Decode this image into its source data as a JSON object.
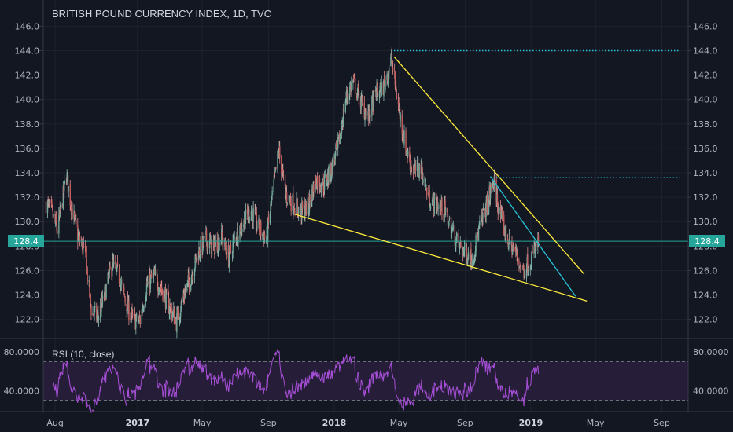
{
  "chart_data": [
    {
      "type": "candlestick",
      "title": "BRITISH POUND CURRENCY INDEX, 1D, TVC",
      "ylim": [
        120.5,
        147.5
      ],
      "yticks": [
        "146.0",
        "144.0",
        "142.0",
        "140.0",
        "138.0",
        "136.0",
        "134.0",
        "132.0",
        "130.0",
        "128.0",
        "126.0",
        "124.0",
        "122.0"
      ],
      "xticks": [
        {
          "label": "Aug",
          "bold": false
        },
        {
          "label": "2017",
          "bold": true
        },
        {
          "label": "May",
          "bold": false
        },
        {
          "label": "Sep",
          "bold": false
        },
        {
          "label": "2018",
          "bold": true
        },
        {
          "label": "May",
          "bold": false
        },
        {
          "label": "Sep",
          "bold": false
        },
        {
          "label": "2019",
          "bold": true
        },
        {
          "label": "May",
          "bold": false
        },
        {
          "label": "Sep",
          "bold": false
        }
      ],
      "current_price": "128.4",
      "grid": true,
      "series_path": [
        [
          "2016-07-15",
          131.5
        ],
        [
          "2016-07-25",
          130.8
        ],
        [
          "2016-08-05",
          129.3
        ],
        [
          "2016-08-12",
          131.0
        ],
        [
          "2016-08-22",
          133.8
        ],
        [
          "2016-09-01",
          131.0
        ],
        [
          "2016-09-12",
          128.8
        ],
        [
          "2016-09-25",
          127.5
        ],
        [
          "2016-10-08",
          122.5
        ],
        [
          "2016-10-20",
          122.2
        ],
        [
          "2016-11-01",
          124.0
        ],
        [
          "2016-11-15",
          126.5
        ],
        [
          "2016-11-28",
          125.5
        ],
        [
          "2016-12-12",
          123.2
        ],
        [
          "2016-12-22",
          122.0
        ],
        [
          "2017-01-05",
          121.8
        ],
        [
          "2017-01-18",
          124.8
        ],
        [
          "2017-02-01",
          125.5
        ],
        [
          "2017-02-15",
          124.5
        ],
        [
          "2017-03-01",
          123.0
        ],
        [
          "2017-03-14",
          121.8
        ],
        [
          "2017-03-28",
          124.0
        ],
        [
          "2017-04-10",
          125.5
        ],
        [
          "2017-04-24",
          127.5
        ],
        [
          "2017-05-08",
          128.5
        ],
        [
          "2017-05-22",
          127.8
        ],
        [
          "2017-06-05",
          128.8
        ],
        [
          "2017-06-19",
          127.0
        ],
        [
          "2017-07-03",
          129.0
        ],
        [
          "2017-07-17",
          130.0
        ],
        [
          "2017-07-31",
          131.0
        ],
        [
          "2017-08-14",
          129.5
        ],
        [
          "2017-08-28",
          128.5
        ],
        [
          "2017-09-11",
          133.0
        ],
        [
          "2017-09-20",
          135.8
        ],
        [
          "2017-10-03",
          132.2
        ],
        [
          "2017-10-17",
          131.5
        ],
        [
          "2017-10-31",
          130.8
        ],
        [
          "2017-11-14",
          131.2
        ],
        [
          "2017-11-28",
          133.5
        ],
        [
          "2017-12-12",
          133.0
        ],
        [
          "2017-12-26",
          134.2
        ],
        [
          "2018-01-10",
          136.5
        ],
        [
          "2018-01-22",
          140.0
        ],
        [
          "2018-02-05",
          141.5
        ],
        [
          "2018-02-19",
          139.8
        ],
        [
          "2018-03-05",
          138.5
        ],
        [
          "2018-03-19",
          140.5
        ],
        [
          "2018-04-02",
          141.0
        ],
        [
          "2018-04-17",
          143.3
        ],
        [
          "2018-04-30",
          139.5
        ],
        [
          "2018-05-14",
          136.0
        ],
        [
          "2018-05-28",
          134.0
        ],
        [
          "2018-06-11",
          134.5
        ],
        [
          "2018-06-25",
          132.0
        ],
        [
          "2018-07-09",
          131.5
        ],
        [
          "2018-07-23",
          131.0
        ],
        [
          "2018-08-06",
          129.5
        ],
        [
          "2018-08-20",
          128.0
        ],
        [
          "2018-09-03",
          127.5
        ],
        [
          "2018-09-14",
          127.0
        ],
        [
          "2018-09-28",
          129.5
        ],
        [
          "2018-10-12",
          131.5
        ],
        [
          "2018-10-24",
          133.3
        ],
        [
          "2018-11-05",
          130.5
        ],
        [
          "2018-11-19",
          128.5
        ],
        [
          "2018-12-03",
          127.5
        ],
        [
          "2018-12-17",
          126.0
        ],
        [
          "2019-01-02",
          127.0
        ],
        [
          "2019-01-15",
          128.4
        ]
      ],
      "annotations": [
        {
          "type": "trendline",
          "color": "#ffeb3b",
          "from": [
            "2018-04-22",
            143.5
          ],
          "to": [
            "2019-04-10",
            125.7
          ]
        },
        {
          "type": "trendline",
          "color": "#ffeb3b",
          "from": [
            "2017-10-20",
            130.6
          ],
          "to": [
            "2019-04-15",
            123.5
          ]
        },
        {
          "type": "trendline",
          "color": "#26c6da",
          "from": [
            "2018-10-18",
            133.7
          ],
          "to": [
            "2019-03-25",
            123.9
          ]
        },
        {
          "type": "horizontal",
          "color": "#26c6da",
          "style": "dotted",
          "value": 144.0,
          "from": "2018-04-22",
          "to": "2019-10-05"
        },
        {
          "type": "horizontal",
          "color": "#26c6da",
          "style": "dotted",
          "value": 133.6,
          "from": "2018-10-18",
          "to": "2019-10-05"
        }
      ]
    },
    {
      "type": "line",
      "title": "RSI (10, close)",
      "ylim": [
        20,
        93
      ],
      "yticks": [
        "80.0000",
        "40.0000"
      ],
      "bands": [
        30,
        70
      ],
      "series": [
        {
          "name": "RSI",
          "color": "#a64fd6"
        }
      ],
      "x_end": "2019-01-15"
    }
  ]
}
